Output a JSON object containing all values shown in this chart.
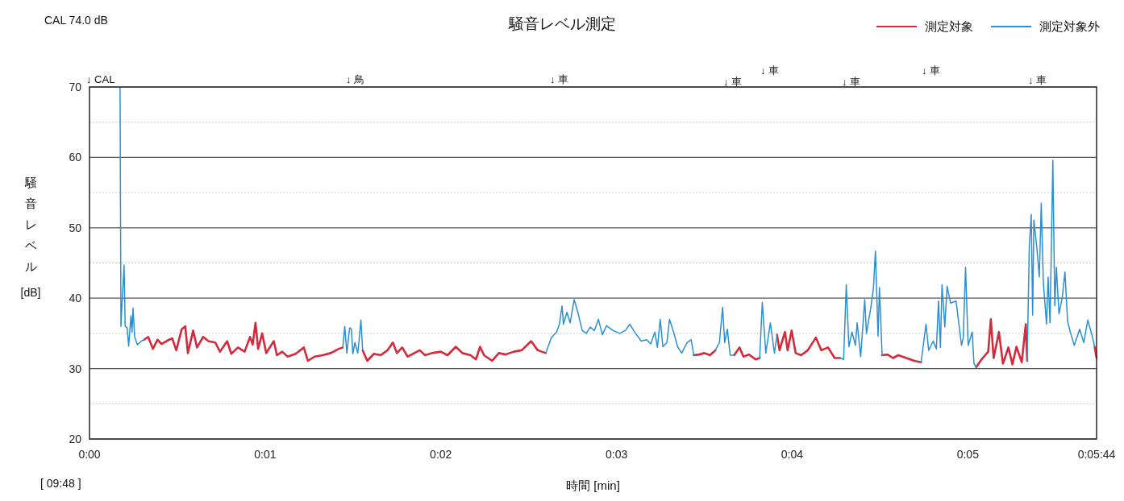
{
  "chart_data": {
    "type": "line",
    "title": "騒音レベル測定",
    "xlabel": "時間 [min]",
    "ylabel": "騒音レベル [dB]",
    "xlim": [
      0,
      5.733
    ],
    "xticks": [
      {
        "value": 0,
        "label": "0:00"
      },
      {
        "value": 1,
        "label": "0:01"
      },
      {
        "value": 2,
        "label": "0:02"
      },
      {
        "value": 3,
        "label": "0:03"
      },
      {
        "value": 4,
        "label": "0:04"
      },
      {
        "value": 5,
        "label": "0:05"
      },
      {
        "value": 5.733,
        "label": "0:05:44"
      }
    ],
    "ylim": [
      20,
      70
    ],
    "yticks": [
      20,
      {
        "value": 25,
        "label": null
      },
      30,
      {
        "value": 35,
        "label": null
      },
      40,
      {
        "value": 45,
        "label": null
      },
      50,
      {
        "value": 55,
        "label": null
      },
      60,
      {
        "value": 65,
        "label": null
      },
      70
    ],
    "grid": "y",
    "legend": "top right",
    "annotations": [
      "CAL 74.0 dB",
      "[ 09:48 ]",
      "↓ CAL",
      "↓ 鳥",
      "↓ 車",
      "↓ 車",
      "↓ 車",
      "↓ 車",
      "↓ 車",
      "↓ 車"
    ],
    "series": [
      {
        "name": "測定対象",
        "color": "#d42a3c",
        "x": [
          0.311,
          0.334,
          0.361,
          0.387,
          0.41,
          0.438,
          0.471,
          0.494,
          0.525,
          0.545,
          0.56,
          0.59,
          0.612,
          0.647,
          0.677,
          0.716,
          0.743,
          0.784,
          0.807,
          0.845,
          0.883,
          0.914,
          0.929,
          0.945,
          0.96,
          0.983,
          1.006,
          1.049,
          1.067,
          1.097,
          1.128,
          1.174,
          1.22,
          1.243,
          1.281,
          1.327,
          1.373,
          1.419,
          1.442,
          null,
          1.555,
          1.581,
          1.619,
          1.658,
          1.696,
          1.727,
          1.75,
          1.78,
          1.811,
          1.849,
          1.88,
          1.91,
          1.949,
          2.0,
          2.038,
          2.085,
          2.123,
          2.169,
          2.2,
          2.223,
          2.246,
          2.292,
          2.33,
          2.369,
          2.415,
          2.46,
          2.514,
          2.552,
          2.598,
          null,
          3.44,
          3.471,
          3.501,
          3.532,
          3.563,
          null,
          3.67,
          3.7,
          3.723,
          3.754,
          3.792,
          3.815,
          null,
          3.914,
          3.928,
          3.959,
          3.974,
          3.997,
          4.02,
          4.051,
          4.089,
          4.135,
          4.166,
          4.204,
          4.242,
          4.273,
          null,
          4.512,
          4.543,
          4.574,
          4.604,
          4.65,
          4.696,
          4.734,
          null,
          5.048,
          5.078,
          5.116,
          5.131,
          5.147,
          5.177,
          5.2,
          5.231,
          5.254,
          5.277,
          5.307,
          5.33,
          5.338,
          null,
          5.722,
          5.733
        ],
        "values": [
          34.1,
          34.5,
          32.8,
          34.1,
          33.5,
          33.9,
          34.3,
          32.6,
          35.6,
          36.0,
          32.2,
          35.4,
          33.0,
          34.5,
          33.9,
          33.7,
          32.4,
          33.9,
          32.1,
          33.0,
          32.4,
          34.5,
          33.4,
          36.5,
          32.8,
          35.0,
          32.2,
          33.9,
          31.9,
          32.4,
          31.7,
          32.1,
          33.0,
          31.1,
          31.7,
          31.9,
          32.2,
          32.8,
          33.0,
          null,
          32.6,
          31.1,
          32.1,
          31.9,
          32.6,
          33.7,
          32.2,
          33.0,
          31.7,
          32.2,
          32.6,
          31.9,
          32.2,
          32.4,
          31.9,
          33.1,
          32.2,
          31.9,
          31.3,
          33.1,
          31.9,
          31.1,
          32.2,
          32.0,
          32.4,
          32.6,
          33.9,
          32.6,
          32.2,
          null,
          31.9,
          32.0,
          32.2,
          31.9,
          32.6,
          null,
          31.9,
          33.0,
          31.7,
          32.0,
          31.3,
          31.5,
          null,
          34.8,
          32.6,
          35.2,
          32.6,
          35.4,
          32.2,
          31.9,
          32.6,
          34.4,
          32.6,
          33.0,
          31.5,
          31.5,
          null,
          31.9,
          32.0,
          31.5,
          31.9,
          31.5,
          31.1,
          30.9,
          null,
          30.2,
          31.3,
          32.4,
          37.0,
          31.5,
          35.2,
          30.7,
          33.0,
          30.6,
          33.1,
          30.9,
          36.3,
          31.1,
          null,
          33.1,
          31.5
        ]
      },
      {
        "name": "測定対象外",
        "color": "#2b8fd4",
        "x": [
          0.174,
          0.179,
          0.184,
          0.197,
          0.203,
          0.214,
          0.223,
          0.236,
          0.242,
          0.248,
          0.257,
          0.272,
          0.295,
          0.311,
          null,
          1.442,
          1.453,
          1.465,
          1.481,
          1.491,
          1.499,
          1.511,
          1.527,
          1.535,
          1.545,
          1.555,
          null,
          2.598,
          2.629,
          2.659,
          2.675,
          2.69,
          2.698,
          2.718,
          2.736,
          2.759,
          2.782,
          2.805,
          2.828,
          2.851,
          2.874,
          2.897,
          2.92,
          2.943,
          2.981,
          3.019,
          3.05,
          3.076,
          3.103,
          3.141,
          3.172,
          3.195,
          3.218,
          3.233,
          3.249,
          3.264,
          3.287,
          3.302,
          3.325,
          3.348,
          3.371,
          3.402,
          3.425,
          3.44,
          null,
          3.563,
          3.586,
          3.604,
          3.616,
          3.631,
          3.647,
          3.67,
          null,
          3.815,
          3.83,
          3.85,
          3.876,
          3.899,
          3.914,
          null,
          4.273,
          4.293,
          4.308,
          4.323,
          4.341,
          4.36,
          4.37,
          4.39,
          4.413,
          4.423,
          4.448,
          4.463,
          4.474,
          4.489,
          4.497,
          4.512,
          null,
          4.734,
          4.762,
          4.777,
          4.803,
          4.821,
          4.833,
          4.844,
          4.853,
          4.869,
          4.882,
          4.902,
          4.933,
          4.964,
          4.974,
          4.987,
          5.002,
          5.025,
          5.035,
          5.048,
          null,
          5.338,
          5.35,
          5.361,
          5.369,
          5.376,
          5.392,
          5.407,
          5.418,
          5.43,
          5.448,
          5.457,
          5.468,
          5.484,
          5.495,
          5.504,
          5.519,
          5.537,
          5.553,
          5.568,
          5.583,
          5.606,
          5.637,
          5.66,
          5.683,
          5.706,
          5.722
        ],
        "values": [
          70,
          36.0,
          38.6,
          44.7,
          36.0,
          35.8,
          33.2,
          37.5,
          35.2,
          38.6,
          34.5,
          33.4,
          33.9,
          34.1,
          null,
          33.0,
          36.0,
          32.2,
          35.8,
          35.6,
          32.1,
          33.7,
          32.2,
          34.1,
          36.9,
          32.6,
          null,
          32.2,
          34.4,
          35.2,
          36.3,
          38.9,
          36.3,
          38.0,
          36.5,
          39.8,
          37.8,
          35.4,
          35.0,
          35.9,
          35.4,
          37.0,
          34.8,
          36.1,
          35.4,
          35.0,
          35.4,
          36.3,
          35.2,
          33.9,
          34.1,
          33.5,
          35.2,
          33.0,
          37.0,
          33.1,
          33.7,
          37.0,
          35.2,
          33.1,
          32.2,
          33.7,
          34.1,
          31.9,
          null,
          32.6,
          33.7,
          38.7,
          33.7,
          35.6,
          31.9,
          31.9,
          null,
          31.5,
          39.4,
          32.2,
          36.5,
          32.2,
          34.8,
          null,
          31.5,
          31.3,
          41.9,
          33.1,
          35.2,
          33.3,
          36.5,
          31.7,
          39.8,
          35.0,
          38.7,
          41.5,
          46.7,
          34.6,
          41.5,
          31.9,
          null,
          30.9,
          36.3,
          32.6,
          33.9,
          32.8,
          39.6,
          33.0,
          41.9,
          35.9,
          41.7,
          39.3,
          39.6,
          33.3,
          34.4,
          44.4,
          33.3,
          35.2,
          30.7,
          30.2,
          null,
          31.1,
          47.4,
          51.9,
          37.6,
          51.1,
          47.4,
          43.0,
          53.5,
          42.2,
          36.3,
          43.0,
          36.5,
          59.6,
          38.9,
          44.4,
          37.8,
          40.0,
          43.7,
          36.7,
          35.2,
          33.3,
          35.6,
          33.7,
          36.9,
          34.8,
          33.1
        ]
      }
    ]
  }
}
